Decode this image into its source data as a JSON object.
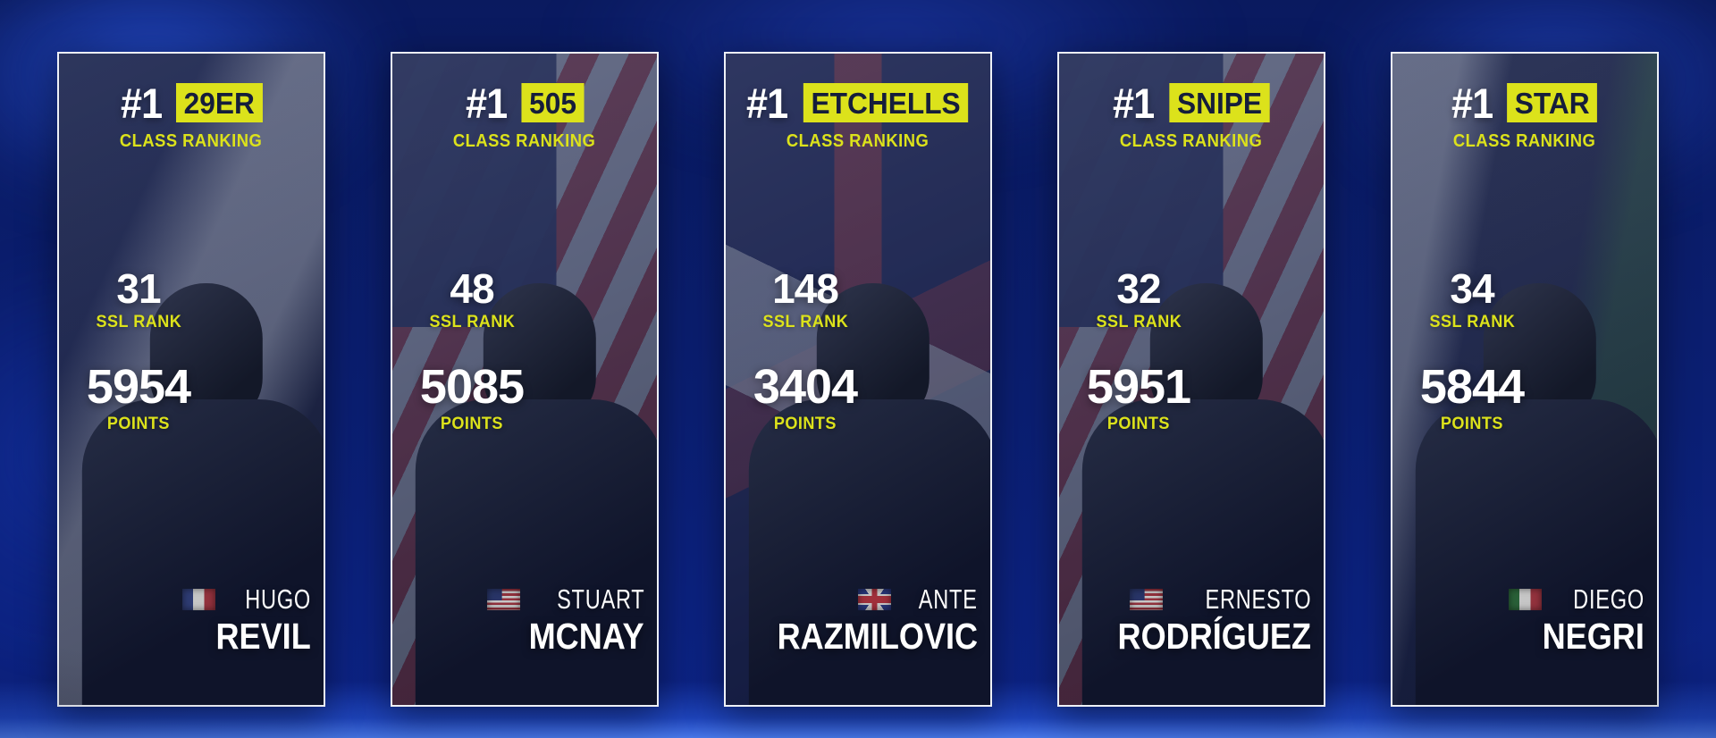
{
  "labels": {
    "class_ranking": "CLASS RANKING",
    "ssl_rank": "SSL RANK",
    "points": "POINTS"
  },
  "colors": {
    "accent_yellow": "#dce21b",
    "badge_text_navy": "#151d3b",
    "text_white": "#ffffff",
    "background_blue": "#0b1f73"
  },
  "cards": [
    {
      "rank": "#1",
      "class": "29ER",
      "ssl_rank": "31",
      "points": "5954",
      "first_name": "HUGO",
      "last_name": "REVIL",
      "flag": "france-flag"
    },
    {
      "rank": "#1",
      "class": "505",
      "ssl_rank": "48",
      "points": "5085",
      "first_name": "STUART",
      "last_name": "MCNAY",
      "flag": "usa-flag"
    },
    {
      "rank": "#1",
      "class": "ETCHELLS",
      "ssl_rank": "148",
      "points": "3404",
      "first_name": "ANTE",
      "last_name": "RAZMILOVIC",
      "flag": "uk-flag"
    },
    {
      "rank": "#1",
      "class": "SNIPE",
      "ssl_rank": "32",
      "points": "5951",
      "first_name": "ERNESTO",
      "last_name": "RODRÍGUEZ",
      "flag": "usa-flag"
    },
    {
      "rank": "#1",
      "class": "STAR",
      "ssl_rank": "34",
      "points": "5844",
      "first_name": "DIEGO",
      "last_name": "NEGRI",
      "flag": "italy-flag"
    }
  ]
}
